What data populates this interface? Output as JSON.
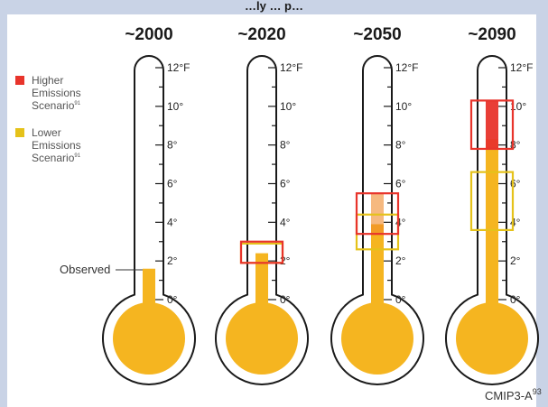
{
  "header": {
    "title": "…ly … p…"
  },
  "legend": {
    "higher": {
      "line1": "Higher",
      "line2": "Emissions",
      "line3": "Scenario",
      "sup": "91",
      "color": "#e8342b"
    },
    "lower": {
      "line1": "Lower",
      "line2": "Emissions",
      "line3": "Scenario",
      "sup": "91",
      "color": "#e5c21a"
    }
  },
  "observed_label": "Observed",
  "source": {
    "text": "CMIP3-A",
    "sup": "93"
  },
  "colors": {
    "mercury": "#f5b520",
    "high_box": "#e8342b",
    "low_box": "#e5c21a",
    "high_fill": "#e8342b"
  },
  "chart_data": {
    "type": "thermometer",
    "unit": "°F",
    "tick_labels": [
      "12°F",
      "10°",
      "8°",
      "6°",
      "4°",
      "2°",
      "0°"
    ],
    "ylim": [
      -1,
      12
    ],
    "periods": [
      {
        "label": "~2000",
        "observed": 1.6
      },
      {
        "label": "~2020",
        "higher": [
          1.9,
          3.0
        ],
        "lower": [
          1.9,
          2.9
        ]
      },
      {
        "label": "~2050",
        "higher": [
          3.4,
          5.5
        ],
        "lower": [
          2.6,
          4.4
        ]
      },
      {
        "label": "~2090",
        "higher": [
          7.8,
          10.3
        ],
        "lower": [
          3.6,
          6.6
        ]
      }
    ]
  }
}
